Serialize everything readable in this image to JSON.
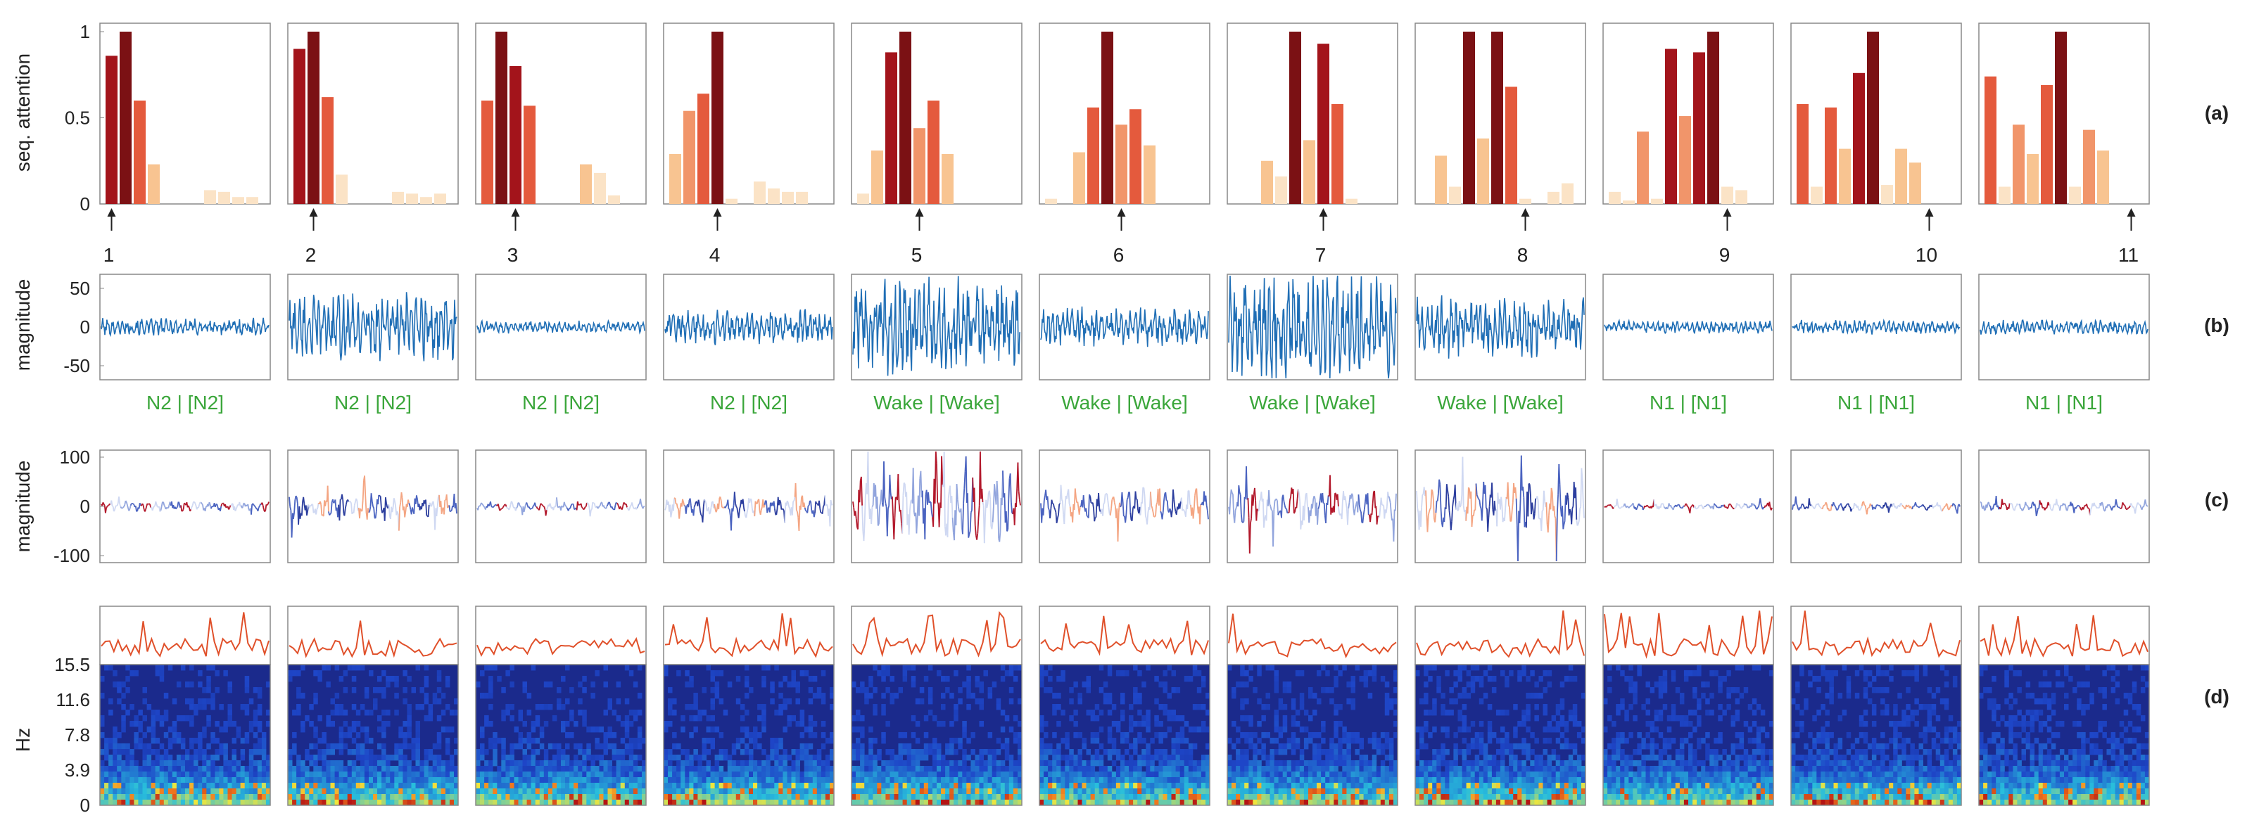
{
  "figure": {
    "row_labels": [
      "(a)",
      "(b)",
      "(c)",
      "(d)"
    ],
    "colors": {
      "axis": "#888888",
      "text": "#222222",
      "stage_text": "#3aa63a",
      "signal": "#1f6eb5",
      "spectrum_line": "#e0502a",
      "spec_bg": "#1b2a8c"
    }
  },
  "chart_data": [
    {
      "type": "bar",
      "row": "a",
      "ylabel": "seq. attention",
      "ylim": [
        0,
        1
      ],
      "yticks": [
        "1",
        "0.5",
        "0"
      ],
      "epochs": [
        "1",
        "2",
        "3",
        "4",
        "5",
        "6",
        "7",
        "8",
        "9",
        "10",
        "11"
      ],
      "values": [
        [
          0.86,
          1.0,
          0.6,
          0.23,
          0,
          0,
          0,
          0.08,
          0.07,
          0.04,
          0.04
        ],
        [
          0.9,
          1.0,
          0.62,
          0.17,
          0,
          0,
          0,
          0.07,
          0.06,
          0.04,
          0.06
        ],
        [
          0.6,
          1.0,
          0.8,
          0.57,
          0,
          0,
          0,
          0.23,
          0.18,
          0.05,
          0
        ],
        [
          0.29,
          0.54,
          0.64,
          1.0,
          0.03,
          0,
          0.13,
          0.09,
          0.07,
          0.07,
          0
        ],
        [
          0.06,
          0.31,
          0.88,
          1.0,
          0.44,
          0.6,
          0.29,
          0,
          0,
          0,
          0
        ],
        [
          0.03,
          0,
          0.3,
          0.56,
          1.0,
          0.46,
          0.55,
          0.34,
          0,
          0,
          0
        ],
        [
          0,
          0,
          0.25,
          0.16,
          1.0,
          0.37,
          0.93,
          0.58,
          0.03,
          0,
          0
        ],
        [
          0,
          0.28,
          0.1,
          1.0,
          0.38,
          1.0,
          0.68,
          0.03,
          0,
          0.07,
          0.12
        ],
        [
          0.07,
          0.02,
          0.42,
          0.03,
          0.9,
          0.51,
          0.88,
          1.0,
          0.1,
          0.08,
          0
        ],
        [
          0.58,
          0.1,
          0.56,
          0.32,
          0.76,
          1.0,
          0.11,
          0.32,
          0.24,
          0,
          0
        ],
        [
          0.74,
          0.1,
          0.46,
          0.29,
          0.69,
          1.0,
          0.1,
          0.43,
          0.31,
          0,
          0
        ]
      ]
    },
    {
      "type": "line",
      "row": "b",
      "ylabel": "magnitude",
      "ylim": [
        -65,
        65
      ],
      "yticks": [
        "50",
        "0",
        "-50"
      ],
      "amplitudes": [
        10,
        38,
        7,
        20,
        55,
        22,
        60,
        35,
        7,
        8,
        8
      ],
      "stage_labels": [
        "N2 | [N2]",
        "N2 | [N2]",
        "N2 | [N2]",
        "N2 | [N2]",
        "Wake | [Wake]",
        "Wake | [Wake]",
        "Wake | [Wake]",
        "Wake | [Wake]",
        "N1 | [N1]",
        "N1 | [N1]",
        "N1 | [N1]"
      ]
    },
    {
      "type": "line",
      "row": "c",
      "ylabel": "magnitude",
      "ylim": [
        -120,
        120
      ],
      "yticks": [
        "100",
        "0",
        "-100"
      ],
      "amplitudes": [
        12,
        30,
        10,
        25,
        80,
        40,
        45,
        60,
        8,
        10,
        10
      ]
    },
    {
      "type": "heatmap",
      "row": "d",
      "ylabel": "Hz",
      "ylim": [
        0,
        15.5
      ],
      "yticks": [
        "15.5",
        "11.6",
        "7.8",
        "3.9",
        "0"
      ]
    }
  ]
}
